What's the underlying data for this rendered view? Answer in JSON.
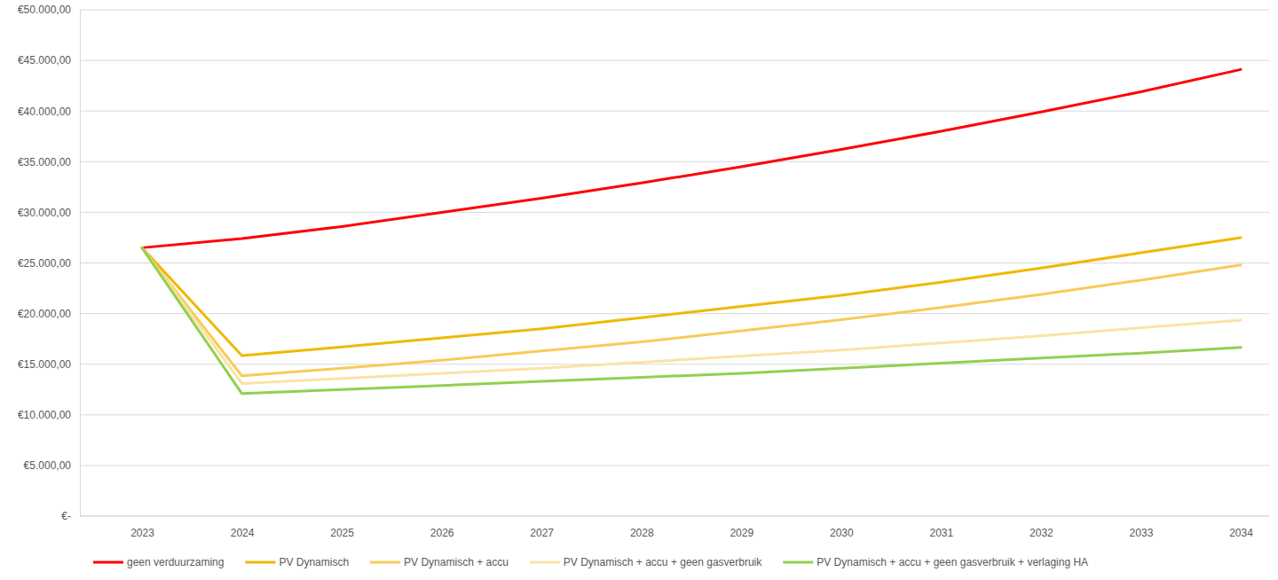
{
  "chart_data": {
    "type": "line",
    "categories": [
      "2023",
      "2024",
      "2025",
      "2026",
      "2027",
      "2028",
      "2029",
      "2030",
      "2031",
      "2032",
      "2033",
      "2034"
    ],
    "series": [
      {
        "name": "geen verduurzaming",
        "color": "#ff0000",
        "values": [
          26500,
          27400,
          28600,
          30000,
          31400,
          32900,
          34500,
          36200,
          38000,
          39900,
          41900,
          44100
        ]
      },
      {
        "name": "PV Dynamisch",
        "color": "#f0b800",
        "values": [
          26500,
          15850,
          16700,
          17600,
          18500,
          19600,
          20700,
          21800,
          23100,
          24500,
          26000,
          27500
        ]
      },
      {
        "name": "PV Dynamisch + accu",
        "color": "#f7cb55",
        "values": [
          26500,
          13850,
          14600,
          15400,
          16300,
          17200,
          18300,
          19400,
          20600,
          21900,
          23300,
          24800
        ]
      },
      {
        "name": "PV Dynamisch + accu + geen gasverbruik",
        "color": "#fbe2a5",
        "values": [
          26500,
          13100,
          13600,
          14100,
          14600,
          15200,
          15800,
          16400,
          17100,
          17800,
          18600,
          19350
        ]
      },
      {
        "name": "PV Dynamisch + accu + geen gasverbruik + verlaging HA",
        "color": "#92d050",
        "values": [
          26500,
          12100,
          12500,
          12900,
          13300,
          13700,
          14100,
          14600,
          15100,
          15600,
          16100,
          16650
        ]
      }
    ],
    "ylim": [
      0,
      50000
    ],
    "yticks": [
      {
        "value": 0,
        "label": "€-"
      },
      {
        "value": 5000,
        "label": "€5.000,00"
      },
      {
        "value": 10000,
        "label": "€10.000,00"
      },
      {
        "value": 15000,
        "label": "€15.000,00"
      },
      {
        "value": 20000,
        "label": "€20.000,00"
      },
      {
        "value": 25000,
        "label": "€25.000,00"
      },
      {
        "value": 30000,
        "label": "€30.000,00"
      },
      {
        "value": 35000,
        "label": "€35.000,00"
      },
      {
        "value": 40000,
        "label": "€40.000,00"
      },
      {
        "value": 45000,
        "label": "€45.000,00"
      },
      {
        "value": 50000,
        "label": "€50.000,00"
      }
    ],
    "grid": true,
    "legend": "bottom"
  }
}
